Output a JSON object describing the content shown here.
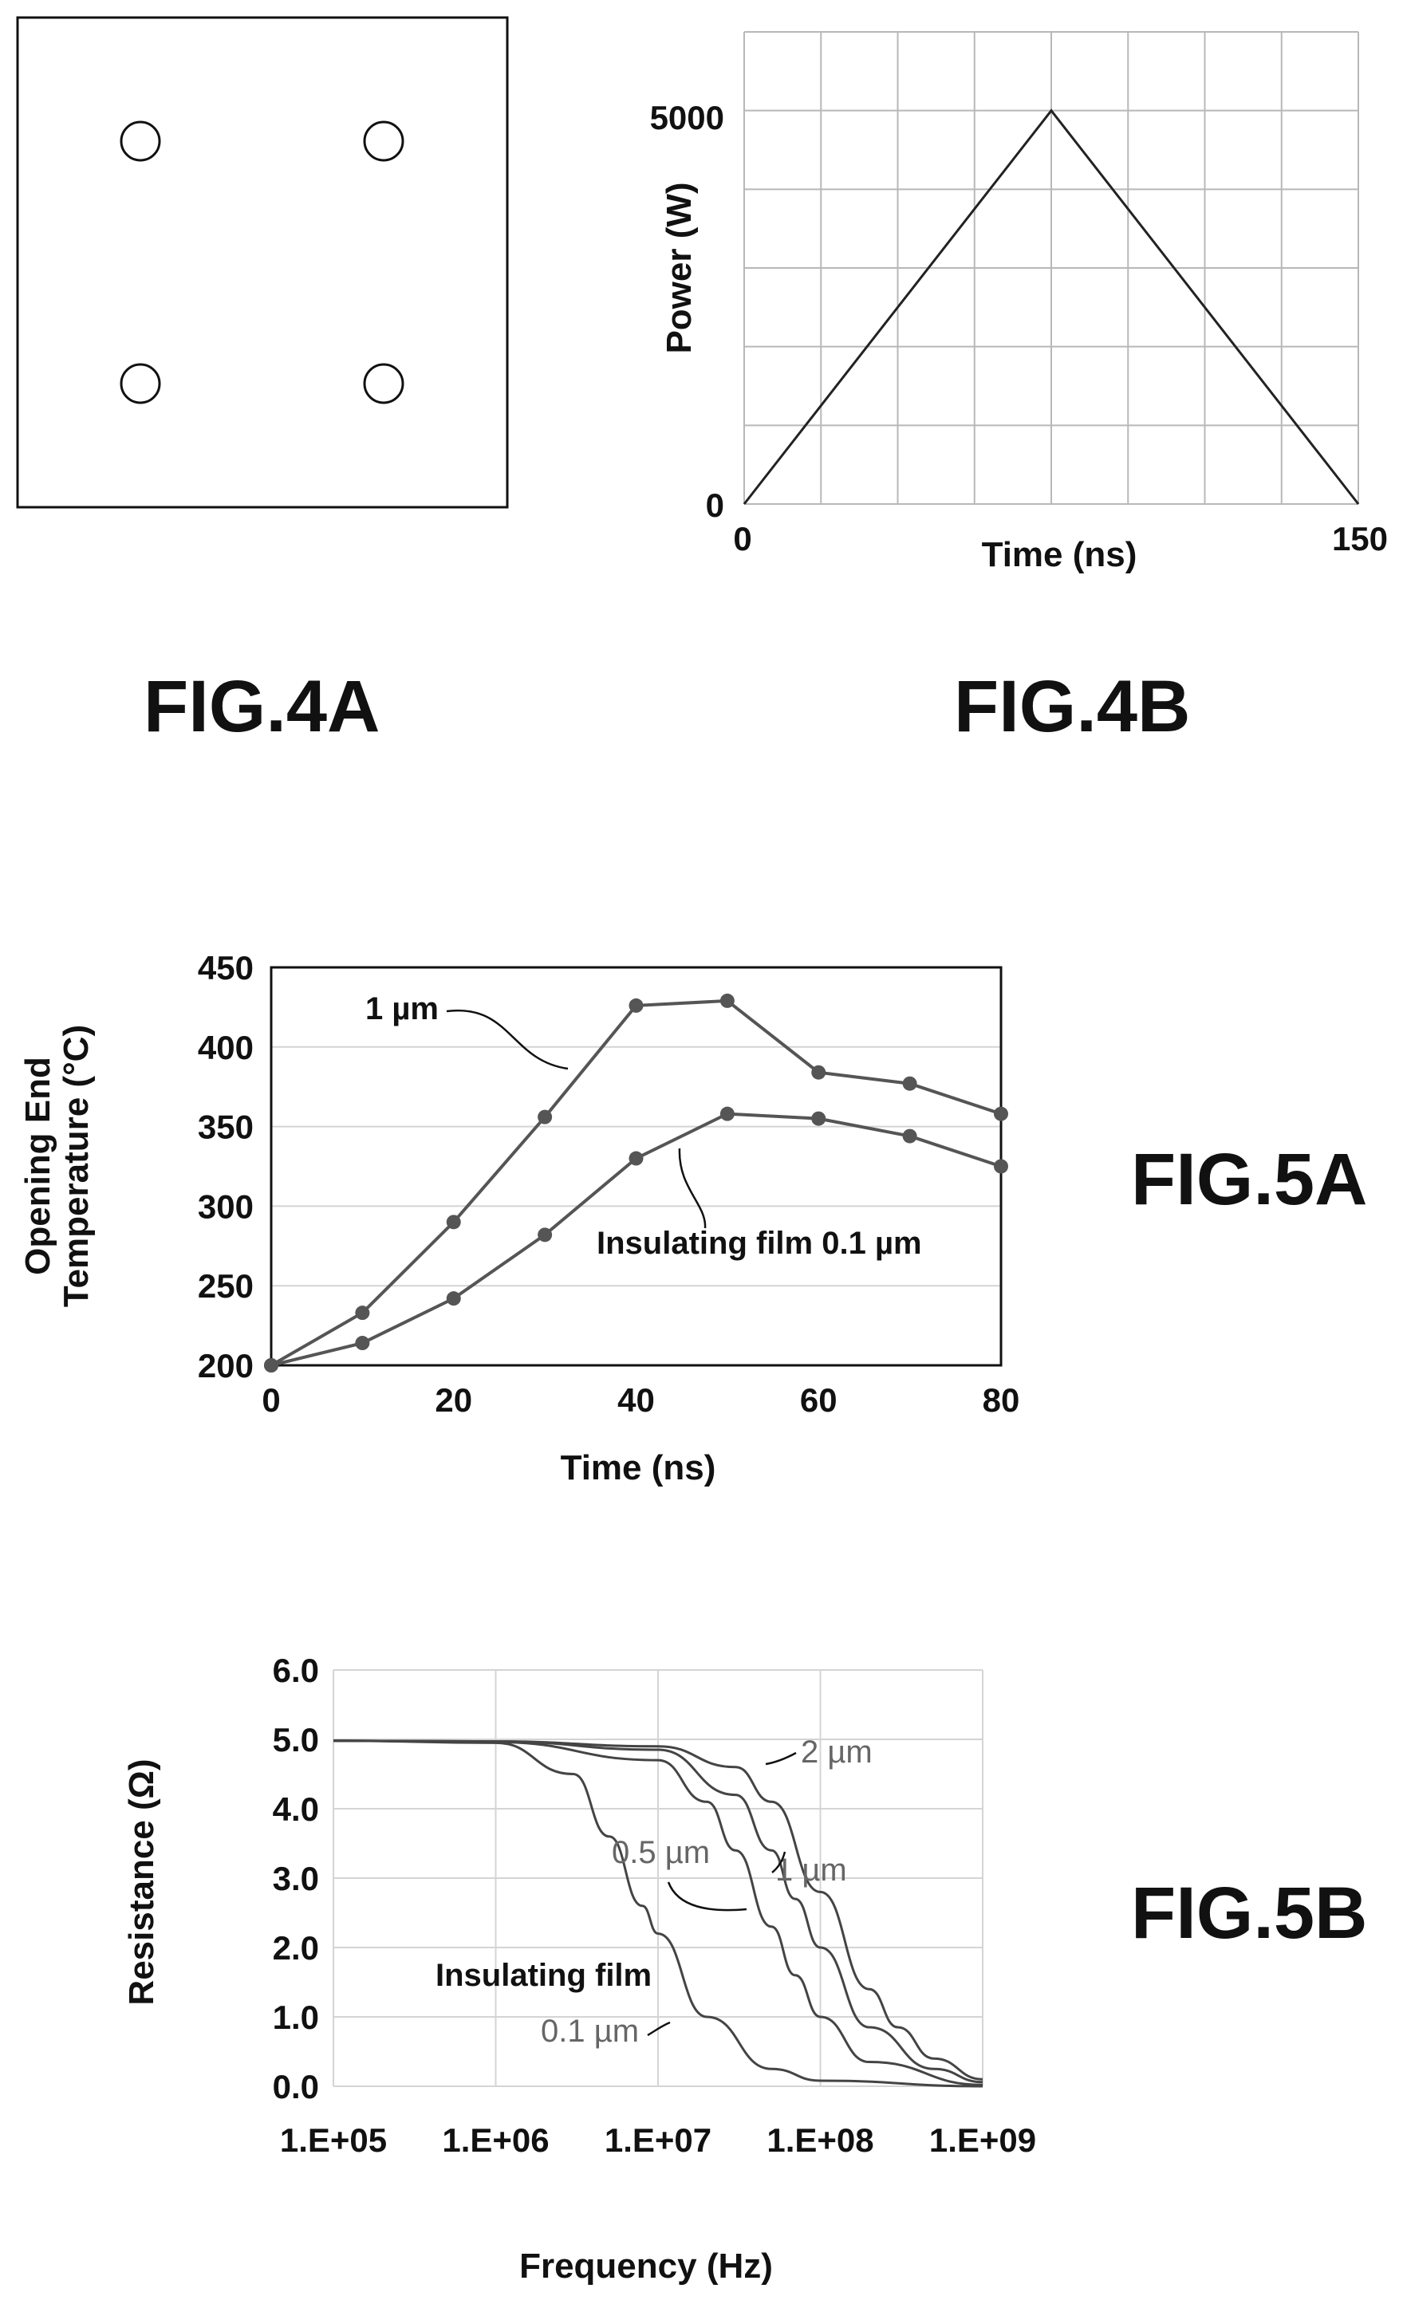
{
  "fig4a": {
    "label": "FIG.4A",
    "holes": 4
  },
  "fig4b": {
    "label": "FIG.4B",
    "chart_data": {
      "type": "line",
      "title": "",
      "xlabel": "Time (ns)",
      "ylabel": "Power (W)",
      "xlim": [
        0,
        150
      ],
      "ylim": [
        0,
        6000
      ],
      "x_tick_labels": [
        "0",
        "150"
      ],
      "y_tick_labels": [
        "0",
        "5000"
      ],
      "grid": true,
      "series": [
        {
          "x": [
            0,
            75,
            150
          ],
          "y": [
            0,
            5000,
            0
          ]
        }
      ]
    }
  },
  "fig5a": {
    "label": "FIG.5A",
    "chart_data": {
      "type": "line",
      "title": "",
      "xlabel": "Time (ns)",
      "ylabel_lines": [
        "Opening End",
        "Temperature (°C)"
      ],
      "xlim": [
        0,
        80
      ],
      "ylim": [
        200,
        450
      ],
      "x_ticks": [
        0,
        20,
        40,
        60,
        80
      ],
      "y_ticks": [
        200,
        250,
        300,
        350,
        400,
        450
      ],
      "grid": true,
      "series": [
        {
          "name": "1 µm",
          "x": [
            0,
            10,
            20,
            30,
            40,
            50,
            60,
            70,
            80
          ],
          "y": [
            200,
            233,
            290,
            356,
            426,
            429,
            384,
            377,
            358
          ]
        },
        {
          "name": "Insulating film 0.1 µm",
          "x": [
            0,
            10,
            20,
            30,
            40,
            50,
            60,
            70,
            80
          ],
          "y": [
            200,
            214,
            242,
            282,
            330,
            358,
            355,
            344,
            325
          ]
        }
      ]
    }
  },
  "fig5b": {
    "label": "FIG.5B",
    "chart_data": {
      "type": "line",
      "title": "",
      "xlabel": "Frequency (Hz)",
      "ylabel": "Resistance (Ω)",
      "x_scale": "log",
      "xlim": [
        100000,
        1000000000
      ],
      "ylim": [
        0,
        6
      ],
      "x_tick_labels": [
        "1.E+05",
        "1.E+06",
        "1.E+07",
        "1.E+08",
        "1.E+09"
      ],
      "y_tick_labels": [
        "0.0",
        "1.0",
        "2.0",
        "3.0",
        "4.0",
        "5.0",
        "6.0"
      ],
      "grid": true,
      "series": [
        {
          "name": "Insulating film 0.1 µm",
          "x": [
            100000,
            1000000,
            3000000,
            5000000,
            8000000,
            10000000,
            20000000,
            50000000,
            100000000,
            1000000000
          ],
          "y": [
            4.98,
            4.95,
            4.5,
            3.6,
            2.6,
            2.2,
            1.0,
            0.25,
            0.08,
            0.0
          ]
        },
        {
          "name": "0.5 µm",
          "x": [
            100000,
            1000000,
            10000000,
            20000000,
            30000000,
            50000000,
            70000000,
            100000000,
            200000000,
            1000000000
          ],
          "y": [
            4.98,
            4.96,
            4.7,
            4.1,
            3.4,
            2.3,
            1.6,
            1.0,
            0.35,
            0.02
          ]
        },
        {
          "name": "1 µm",
          "x": [
            100000,
            1000000,
            10000000,
            30000000,
            50000000,
            70000000,
            100000000,
            200000000,
            500000000,
            1000000000
          ],
          "y": [
            4.98,
            4.97,
            4.85,
            4.2,
            3.4,
            2.7,
            2.0,
            0.85,
            0.25,
            0.06
          ]
        },
        {
          "name": "2 µm",
          "x": [
            100000,
            1000000,
            10000000,
            30000000,
            50000000,
            100000000,
            200000000,
            300000000,
            500000000,
            1000000000
          ],
          "y": [
            4.98,
            4.97,
            4.9,
            4.6,
            4.1,
            2.8,
            1.4,
            0.85,
            0.4,
            0.1
          ]
        }
      ],
      "annotations": [
        "Insulating film",
        "0.1 µm",
        "0.5 µm",
        "1 µm",
        "2 µm"
      ]
    }
  }
}
